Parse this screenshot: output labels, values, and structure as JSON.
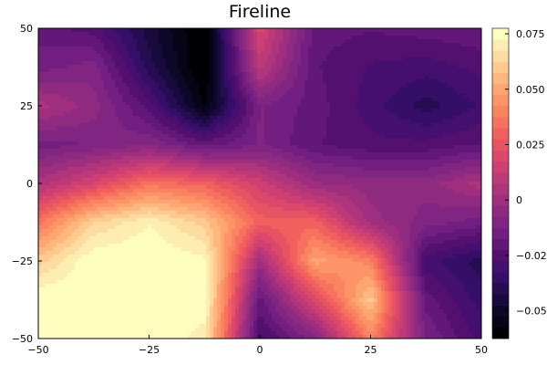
{
  "chart_data": {
    "type": "heatmap",
    "subtype": "filled-contour",
    "title": "Fireline",
    "xlabel": "",
    "ylabel": "",
    "xlim": [
      -50,
      50
    ],
    "ylim": [
      -50,
      50
    ],
    "x_ticks": [
      -50,
      -25,
      0,
      25,
      50
    ],
    "x_tick_labels": [
      "−50",
      "−25",
      "0",
      "25",
      "50"
    ],
    "y_ticks": [
      -50,
      -25,
      0,
      25,
      50
    ],
    "y_tick_labels": [
      "−50",
      "−25",
      "0",
      "25",
      "50"
    ],
    "grid": false,
    "colormap": "inferno",
    "colorbar": {
      "range": [
        -0.0625,
        0.0775
      ],
      "ticks": [
        -0.05,
        -0.025,
        0,
        0.025,
        0.05,
        0.075
      ],
      "tick_labels": [
        "−0.050",
        "−0.025",
        "0",
        "0.025",
        "0.050",
        "0.075"
      ],
      "levels": [
        -0.0625,
        -0.0575,
        -0.0525,
        -0.0475,
        -0.0425,
        -0.0375,
        -0.0325,
        -0.0275,
        -0.0225,
        -0.0175,
        -0.0125,
        -0.0075,
        -0.0025,
        0.0025,
        0.0075,
        0.0125,
        0.0175,
        0.0225,
        0.0275,
        0.0325,
        0.0375,
        0.0425,
        0.0475,
        0.0525,
        0.0575,
        0.0625,
        0.0675,
        0.0725,
        0.0775
      ],
      "colors": [
        "#000004",
        "#0b0724",
        "#200c4a",
        "#3b0f70",
        "#57106e",
        "#721f81",
        "#8c2981",
        "#a8327d",
        "#c43c75",
        "#de4968",
        "#f1605d",
        "#fa7f5e",
        "#fe9f6d",
        "#febf84",
        "#fde0a5",
        "#fcfdbf"
      ]
    },
    "x": [
      -50,
      -37.5,
      -25,
      -12.5,
      0,
      12.5,
      25,
      37.5,
      50
    ],
    "y": [
      -50,
      -37.5,
      -25,
      -12.5,
      0,
      12.5,
      25,
      37.5,
      50
    ],
    "z": [
      [
        0.078,
        0.078,
        0.078,
        0.07,
        -0.03,
        -0.01,
        0.04,
        -0.012,
        -0.03
      ],
      [
        0.078,
        0.078,
        0.078,
        0.076,
        -0.02,
        0.02,
        0.06,
        -0.02,
        -0.035
      ],
      [
        0.06,
        0.078,
        0.078,
        0.074,
        0.0,
        0.05,
        0.04,
        -0.03,
        -0.04
      ],
      [
        0.035,
        0.062,
        0.072,
        0.06,
        0.03,
        0.03,
        0.0,
        -0.01,
        -0.015
      ],
      [
        0.005,
        0.018,
        0.035,
        0.03,
        0.015,
        -0.002,
        -0.005,
        -0.005,
        0.005
      ],
      [
        -0.015,
        -0.012,
        -0.008,
        -0.02,
        -0.012,
        -0.022,
        -0.026,
        -0.026,
        -0.022
      ],
      [
        0.005,
        -0.005,
        -0.025,
        -0.058,
        -0.012,
        -0.02,
        -0.03,
        -0.04,
        -0.032
      ],
      [
        -0.015,
        -0.01,
        -0.04,
        -0.064,
        0.01,
        -0.022,
        -0.028,
        -0.03,
        -0.026
      ],
      [
        -0.02,
        -0.025,
        -0.045,
        -0.064,
        0.02,
        -0.02,
        -0.022,
        -0.02,
        -0.018
      ]
    ]
  }
}
